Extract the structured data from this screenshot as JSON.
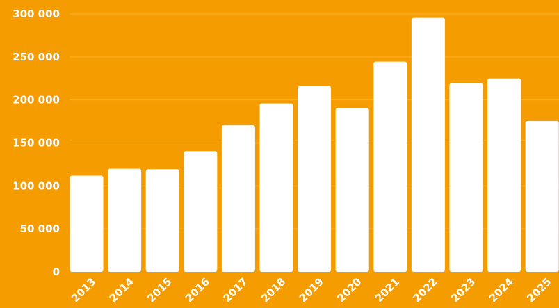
{
  "colors": {
    "background": "#F59C00",
    "bar": "#FFFFFF",
    "gridline": "#F7B03A",
    "text": "#FFFFFF"
  },
  "chart_data": {
    "type": "bar",
    "title": "",
    "xlabel": "",
    "ylabel": "",
    "categories": [
      "2013",
      "2014",
      "2015",
      "2016",
      "2017",
      "2018",
      "2019",
      "2020",
      "2021",
      "2022",
      "2023",
      "2024",
      "2025"
    ],
    "values": [
      112000,
      120000,
      119500,
      140500,
      170500,
      196000,
      216000,
      190500,
      244500,
      295500,
      219500,
      225000,
      175500
    ],
    "ylim": [
      0,
      300000
    ],
    "yticks": [
      0,
      50000,
      100000,
      150000,
      200000,
      250000,
      300000
    ],
    "ytick_labels": [
      "0",
      "50 000",
      "100 000",
      "150 000",
      "200 000",
      "250 000",
      "300 000"
    ],
    "grid": true,
    "legend": "none"
  }
}
